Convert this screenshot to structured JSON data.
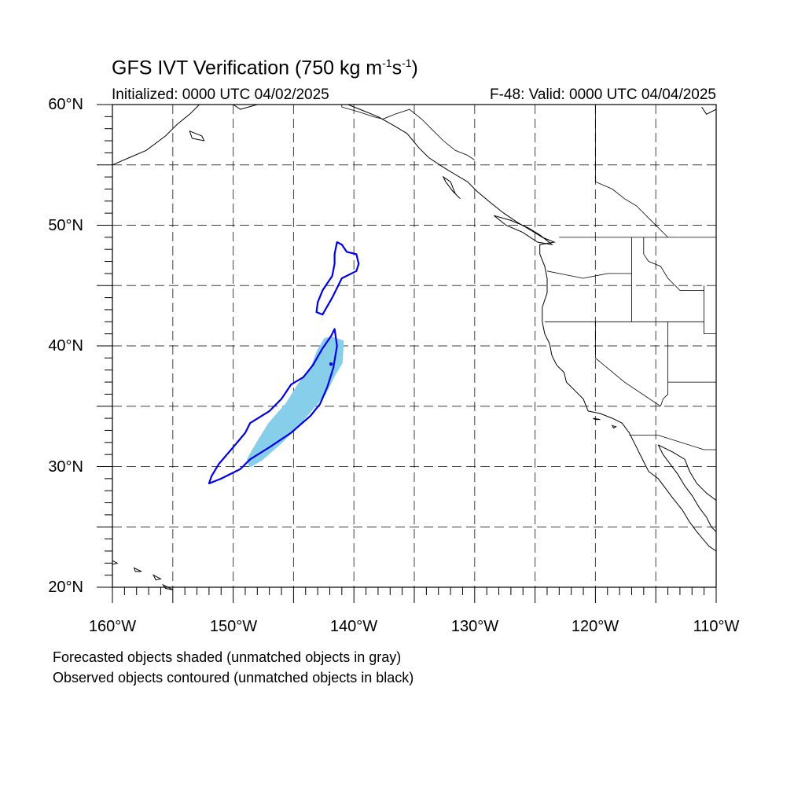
{
  "title": {
    "main": "GFS IVT Verification (750 kg m",
    "exp1": "-1",
    "mid": "s",
    "exp2": "-1",
    "close": ")"
  },
  "initialized": "Initialized: 0000 UTC 04/02/2025",
  "valid": "F-48: Valid: 0000 UTC 04/04/2025",
  "lat_labels": [
    "60°N",
    "50°N",
    "40°N",
    "30°N",
    "20°N"
  ],
  "lon_labels": [
    "160°W",
    "150°W",
    "140°W",
    "130°W",
    "120°W",
    "110°W"
  ],
  "notes": [
    "Forecasted objects shaded (unmatched objects in gray)",
    "Observed objects contoured (unmatched objects in black)"
  ],
  "colors": {
    "forecast_fill": "#87ceeb",
    "observed_contour": "#0000ee",
    "coastline": "#000000",
    "grid": "#000000"
  },
  "map_data": {
    "lon_range": [
      -160,
      -110
    ],
    "lat_range": [
      20,
      60
    ],
    "grid_lon_step": 5,
    "grid_lat_step": 5,
    "forecast_object": [
      [
        -148.6,
        30.0
      ],
      [
        -147.6,
        30.6
      ],
      [
        -146.0,
        32.0
      ],
      [
        -144.6,
        33.4
      ],
      [
        -143.6,
        34.6
      ],
      [
        -142.4,
        36.0
      ],
      [
        -141.6,
        37.6
      ],
      [
        -141.0,
        38.6
      ],
      [
        -140.9,
        40.4
      ],
      [
        -141.8,
        40.7
      ],
      [
        -142.4,
        40.6
      ],
      [
        -143.0,
        39.6
      ],
      [
        -143.6,
        38.0
      ],
      [
        -144.6,
        36.8
      ],
      [
        -145.6,
        35.2
      ],
      [
        -147.0,
        33.6
      ],
      [
        -148.0,
        32.0
      ],
      [
        -148.8,
        30.6
      ]
    ],
    "observed_object_south": [
      [
        -152.0,
        28.6
      ],
      [
        -151.0,
        29.0
      ],
      [
        -149.4,
        29.8
      ],
      [
        -148.6,
        30.6
      ],
      [
        -147.0,
        31.6
      ],
      [
        -145.2,
        32.8
      ],
      [
        -143.6,
        34.2
      ],
      [
        -142.8,
        35.2
      ],
      [
        -142.2,
        36.6
      ],
      [
        -141.7,
        38.2
      ],
      [
        -141.4,
        40.0
      ],
      [
        -141.6,
        41.4
      ],
      [
        -141.9,
        40.8
      ],
      [
        -142.6,
        39.8
      ],
      [
        -143.4,
        38.4
      ],
      [
        -144.2,
        37.4
      ],
      [
        -145.2,
        36.8
      ],
      [
        -146.0,
        35.6
      ],
      [
        -147.0,
        34.6
      ],
      [
        -148.6,
        33.6
      ],
      [
        -149.0,
        32.8
      ],
      [
        -150.0,
        31.6
      ],
      [
        -151.2,
        30.2
      ],
      [
        -151.8,
        29.2
      ],
      [
        -152.0,
        28.6
      ]
    ],
    "observed_object_north": [
      [
        -141.4,
        48.6
      ],
      [
        -141.6,
        47.6
      ],
      [
        -141.6,
        46.8
      ],
      [
        -141.8,
        45.8
      ],
      [
        -142.6,
        44.6
      ],
      [
        -143.0,
        43.6
      ],
      [
        -143.1,
        42.8
      ],
      [
        -142.6,
        42.6
      ],
      [
        -141.8,
        44.0
      ],
      [
        -141.0,
        45.6
      ],
      [
        -139.8,
        46.2
      ],
      [
        -139.6,
        46.8
      ],
      [
        -139.8,
        47.6
      ],
      [
        -140.6,
        47.8
      ],
      [
        -141.0,
        48.4
      ],
      [
        -141.4,
        48.6
      ]
    ],
    "observed_point": [
      -141.9,
      38.5
    ],
    "coastline": [
      [
        [
          -140.5,
          60.0
        ],
        [
          -139.5,
          59.6
        ],
        [
          -138.0,
          59.0
        ],
        [
          -136.6,
          58.2
        ],
        [
          -135.6,
          57.6
        ],
        [
          -134.6,
          56.4
        ],
        [
          -133.8,
          55.6
        ],
        [
          -132.6,
          54.8
        ],
        [
          -131.6,
          54.2
        ],
        [
          -130.6,
          53.6
        ],
        [
          -129.8,
          52.8
        ],
        [
          -128.6,
          51.8
        ],
        [
          -127.6,
          51.0
        ],
        [
          -126.4,
          50.2
        ],
        [
          -125.2,
          49.5
        ],
        [
          -124.4,
          49.0
        ],
        [
          -123.4,
          48.6
        ],
        [
          -124.6,
          48.4
        ],
        [
          -124.6,
          47.6
        ],
        [
          -124.2,
          46.6
        ],
        [
          -124.0,
          45.6
        ],
        [
          -124.0,
          44.4
        ],
        [
          -124.4,
          43.2
        ],
        [
          -124.4,
          42.0
        ],
        [
          -124.2,
          41.0
        ],
        [
          -123.8,
          40.2
        ],
        [
          -123.6,
          39.2
        ],
        [
          -123.2,
          38.4
        ],
        [
          -122.6,
          37.8
        ],
        [
          -122.4,
          37.0
        ],
        [
          -121.8,
          36.4
        ],
        [
          -121.0,
          35.6
        ],
        [
          -120.6,
          34.6
        ],
        [
          -119.6,
          34.4
        ],
        [
          -118.6,
          34.0
        ],
        [
          -117.8,
          33.6
        ],
        [
          -117.2,
          32.8
        ],
        [
          -116.8,
          32.0
        ],
        [
          -116.4,
          31.2
        ],
        [
          -116.0,
          30.4
        ],
        [
          -115.6,
          29.6
        ],
        [
          -114.8,
          29.0
        ],
        [
          -114.2,
          28.2
        ],
        [
          -113.6,
          27.4
        ],
        [
          -112.8,
          26.4
        ],
        [
          -112.2,
          25.4
        ],
        [
          -111.6,
          24.6
        ],
        [
          -110.6,
          23.4
        ],
        [
          -110.0,
          23.0
        ]
      ],
      [
        [
          -114.8,
          31.8
        ],
        [
          -114.4,
          31.0
        ],
        [
          -113.8,
          30.2
        ],
        [
          -113.2,
          29.4
        ],
        [
          -112.6,
          28.4
        ],
        [
          -112.0,
          27.6
        ],
        [
          -111.4,
          26.6
        ],
        [
          -110.8,
          25.8
        ],
        [
          -110.4,
          25.0
        ],
        [
          -110.0,
          24.6
        ]
      ],
      [
        [
          -114.8,
          31.8
        ],
        [
          -113.6,
          31.2
        ],
        [
          -112.6,
          30.6
        ],
        [
          -112.2,
          29.6
        ],
        [
          -111.6,
          28.6
        ],
        [
          -110.8,
          27.8
        ],
        [
          -110.0,
          27.2
        ]
      ],
      [
        [
          -160.0,
          55.0
        ],
        [
          -158.6,
          55.6
        ],
        [
          -157.2,
          56.2
        ],
        [
          -156.4,
          56.8
        ],
        [
          -155.6,
          57.4
        ],
        [
          -154.6,
          58.4
        ],
        [
          -153.6,
          59.2
        ],
        [
          -152.8,
          60.0
        ]
      ],
      [
        [
          -150.0,
          60.0
        ],
        [
          -149.4,
          59.6
        ],
        [
          -148.0,
          60.0
        ]
      ],
      [
        [
          -110.0,
          59.6
        ],
        [
          -110.8,
          59.2
        ],
        [
          -111.2,
          59.8
        ]
      ]
    ],
    "islands": [
      [
        [
          -132.6,
          54.0
        ],
        [
          -132.0,
          53.6
        ],
        [
          -131.6,
          52.6
        ],
        [
          -131.2,
          52.2
        ],
        [
          -131.8,
          52.8
        ],
        [
          -132.4,
          53.6
        ],
        [
          -132.6,
          54.0
        ]
      ],
      [
        [
          -128.4,
          50.8
        ],
        [
          -127.0,
          50.4
        ],
        [
          -125.6,
          49.8
        ],
        [
          -124.6,
          49.2
        ],
        [
          -123.6,
          48.4
        ],
        [
          -124.8,
          48.6
        ],
        [
          -126.0,
          49.4
        ],
        [
          -127.4,
          50.0
        ],
        [
          -128.4,
          50.8
        ]
      ],
      [
        [
          -153.6,
          57.8
        ],
        [
          -152.6,
          57.4
        ],
        [
          -152.4,
          57.0
        ],
        [
          -153.4,
          57.2
        ],
        [
          -153.6,
          57.8
        ]
      ],
      [
        [
          -160.0,
          22.2
        ],
        [
          -159.6,
          22.0
        ],
        [
          -160.0,
          21.9
        ],
        [
          -160.0,
          22.2
        ]
      ],
      [
        [
          -158.2,
          21.6
        ],
        [
          -157.6,
          21.3
        ],
        [
          -158.1,
          21.3
        ],
        [
          -158.2,
          21.6
        ]
      ],
      [
        [
          -156.6,
          21.0
        ],
        [
          -156.0,
          20.7
        ],
        [
          -156.4,
          20.6
        ],
        [
          -156.6,
          21.0
        ]
      ],
      [
        [
          -155.8,
          20.2
        ],
        [
          -155.0,
          19.8
        ],
        [
          -155.6,
          19.9
        ],
        [
          -155.8,
          20.2
        ]
      ],
      [
        [
          -120.2,
          34.0
        ],
        [
          -119.6,
          33.9
        ],
        [
          -120.0,
          33.9
        ],
        [
          -120.2,
          34.0
        ]
      ],
      [
        [
          -118.6,
          33.4
        ],
        [
          -118.3,
          33.3
        ],
        [
          -118.5,
          33.2
        ],
        [
          -118.6,
          33.4
        ]
      ]
    ],
    "borders": [
      [
        [
          -141.0,
          60.0
        ],
        [
          -141.0,
          59.8
        ],
        [
          -139.6,
          59.4
        ],
        [
          -138.4,
          59.0
        ],
        [
          -137.6,
          58.8
        ],
        [
          -136.6,
          59.2
        ],
        [
          -135.4,
          59.6
        ],
        [
          -134.4,
          58.8
        ],
        [
          -133.6,
          58.0
        ],
        [
          -132.6,
          57.0
        ],
        [
          -131.6,
          56.2
        ],
        [
          -130.6,
          55.8
        ],
        [
          -130.0,
          55.4
        ]
      ],
      [
        [
          -123.0,
          49.0
        ],
        [
          -110.0,
          49.0
        ]
      ],
      [
        [
          -120.0,
          60.0
        ],
        [
          -120.0,
          53.6
        ],
        [
          -118.6,
          53.0
        ],
        [
          -117.6,
          52.2
        ],
        [
          -116.6,
          51.6
        ],
        [
          -115.6,
          50.6
        ],
        [
          -114.6,
          49.6
        ],
        [
          -114.0,
          49.0
        ]
      ],
      [
        [
          -124.0,
          46.2
        ],
        [
          -123.0,
          46.0
        ],
        [
          -121.0,
          45.6
        ],
        [
          -119.0,
          46.0
        ],
        [
          -117.0,
          46.0
        ]
      ],
      [
        [
          -117.0,
          49.0
        ],
        [
          -117.0,
          42.0
        ]
      ],
      [
        [
          -124.2,
          42.0
        ],
        [
          -111.0,
          42.0
        ]
      ],
      [
        [
          -120.0,
          42.0
        ],
        [
          -120.0,
          39.0
        ],
        [
          -117.6,
          37.0
        ],
        [
          -114.6,
          35.0
        ]
      ],
      [
        [
          -114.0,
          42.0
        ],
        [
          -114.0,
          36.0
        ],
        [
          -114.4,
          35.6
        ],
        [
          -114.6,
          35.0
        ]
      ],
      [
        [
          -116.0,
          49.0
        ],
        [
          -116.0,
          47.6
        ],
        [
          -115.6,
          47.0
        ],
        [
          -114.6,
          46.6
        ],
        [
          -114.0,
          45.6
        ],
        [
          -113.0,
          44.6
        ],
        [
          -111.0,
          44.6
        ]
      ],
      [
        [
          -114.0,
          37.0
        ],
        [
          -110.0,
          37.0
        ]
      ],
      [
        [
          -117.2,
          32.6
        ],
        [
          -114.8,
          32.6
        ],
        [
          -111.0,
          31.4
        ],
        [
          -110.0,
          31.4
        ]
      ],
      [
        [
          -111.0,
          45.0
        ],
        [
          -111.0,
          41.0
        ],
        [
          -110.0,
          41.0
        ]
      ]
    ]
  }
}
